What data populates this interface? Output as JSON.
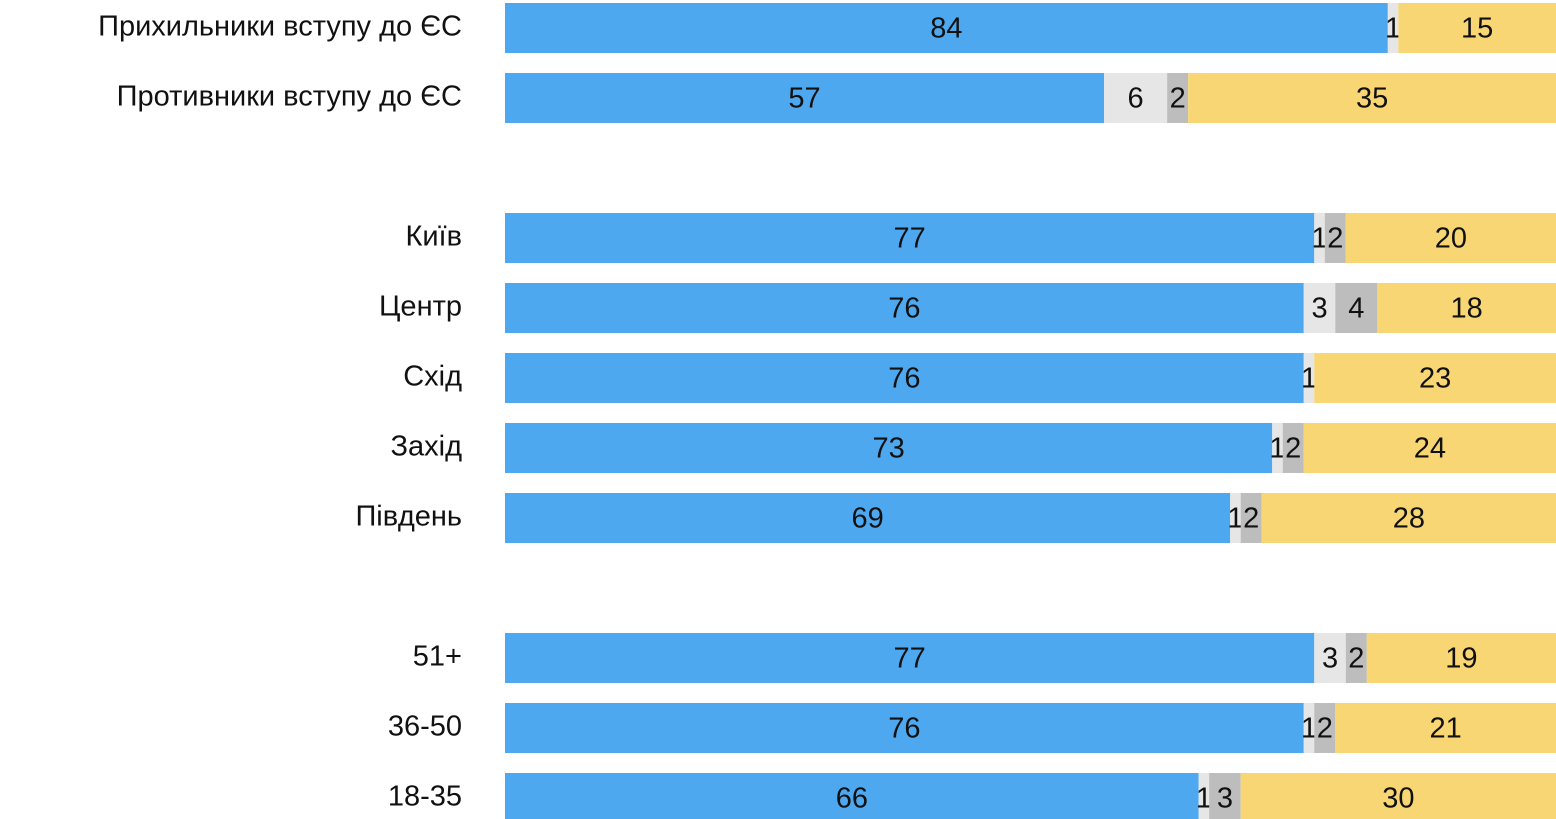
{
  "chart_data": {
    "type": "stacked-barh",
    "categories": [
      "Прихильники вступу до ЄС",
      "Противники вступу до ЄС",
      null,
      "Київ",
      "Центр",
      "Схід",
      "Захід",
      "Південь",
      null,
      "51+",
      "36-50",
      "18-35"
    ],
    "series": [
      {
        "color": "#4ea8f0",
        "values": [
          84,
          57,
          null,
          77,
          76,
          76,
          73,
          69,
          null,
          77,
          76,
          66
        ]
      },
      {
        "color": "#e6e6e6",
        "values": [
          1,
          6,
          null,
          1,
          3,
          1,
          1,
          1,
          null,
          3,
          1,
          1
        ]
      },
      {
        "color": "#bdbdbd",
        "values": [
          null,
          2,
          null,
          2,
          4,
          null,
          2,
          2,
          null,
          2,
          2,
          3
        ]
      },
      {
        "color": "#f8d673",
        "values": [
          15,
          35,
          null,
          20,
          18,
          23,
          24,
          28,
          null,
          19,
          21,
          30
        ]
      }
    ],
    "xlim": [
      0,
      100
    ]
  }
}
